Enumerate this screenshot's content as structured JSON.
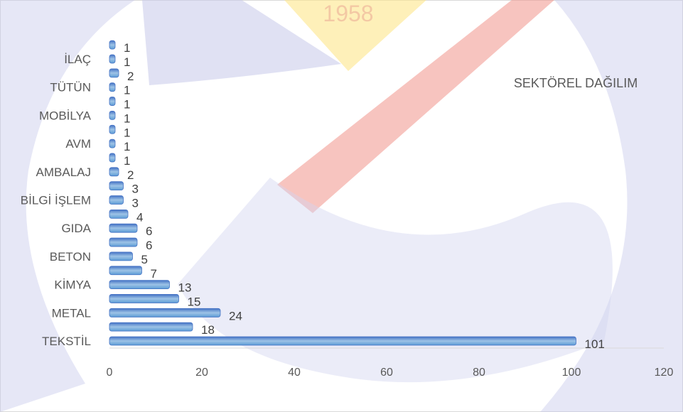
{
  "chart_data": {
    "type": "bar",
    "orientation": "horizontal",
    "title": "SEKTÖREL DAĞILIM",
    "watermark_text": "1958",
    "categories": [
      "TEKSTİL",
      "",
      "METAL",
      "",
      "KİMYA",
      "",
      "BETON",
      "",
      "GIDA",
      "",
      "BİLGİ İŞLEM",
      "",
      "AMBALAJ",
      "",
      "AVM",
      "",
      "MOBİLYA",
      "",
      "TÜTÜN",
      "",
      "İLAÇ",
      ""
    ],
    "values": [
      101,
      18,
      24,
      15,
      13,
      7,
      5,
      6,
      6,
      4,
      3,
      3,
      2,
      1,
      1,
      1,
      1,
      1,
      1,
      2,
      1,
      1
    ],
    "xlim": [
      0,
      120
    ],
    "xticks": [
      "0",
      "20",
      "40",
      "60",
      "80",
      "100",
      "120"
    ],
    "xlabel": "",
    "ylabel": "",
    "legend": "none",
    "grid": false,
    "colors": {
      "bar": "#5b9bd5",
      "bar_dark": "#4472c4",
      "bar_light": "#9dc3e6",
      "label_text": "#404040",
      "axis_text": "#595959",
      "axis_line": "#d9d9d9",
      "watermark_red": "#e74c3c",
      "watermark_yellow": "#fde68a",
      "watermark_blue": "#c7c9ea"
    }
  }
}
